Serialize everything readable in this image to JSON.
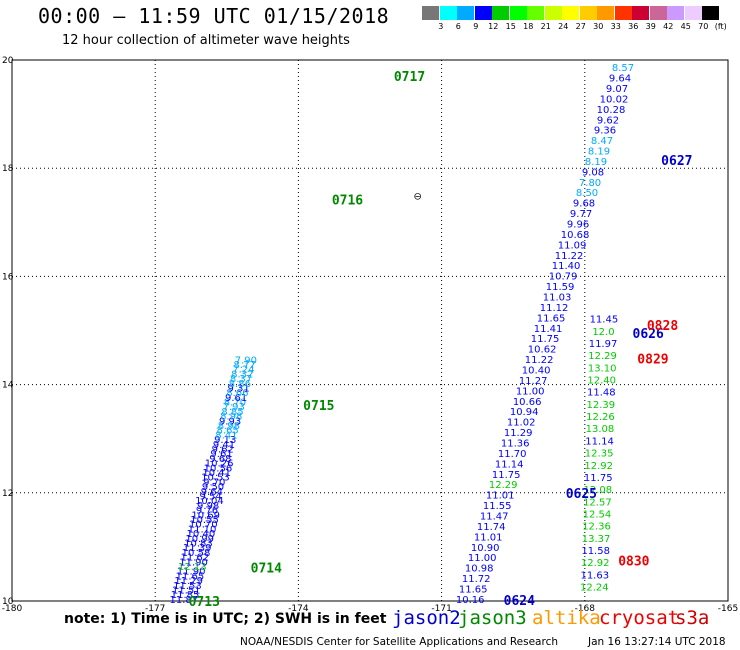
{
  "header": {
    "title": "00:00 – 11:59 UTC 01/15/2018",
    "subtitle": "12 hour collection of altimeter wave heights"
  },
  "colorbar": {
    "colors": [
      "#777777",
      "#00ffff",
      "#00aaff",
      "#0000ff",
      "#00cc00",
      "#00ff00",
      "#66ff00",
      "#ccff00",
      "#ffff00",
      "#ffcc00",
      "#ff9900",
      "#ff3300",
      "#cc0033",
      "#cc6699",
      "#cc99ff",
      "#eeccff",
      "#000000"
    ],
    "ticks": [
      "3",
      "6",
      "9",
      "12",
      "15",
      "18",
      "21",
      "24",
      "27",
      "30",
      "33",
      "36",
      "39",
      "42",
      "45",
      "70",
      "(ft)"
    ]
  },
  "chart_data": {
    "type": "scatter",
    "title": "00:00 – 11:59 UTC 01/15/2018",
    "subtitle": "12 hour collection of altimeter wave heights",
    "xlim": [
      -180,
      -165
    ],
    "ylim": [
      10,
      20
    ],
    "x_ticks": [
      "-180",
      "-177",
      "-174",
      "-171",
      "-168",
      "-165"
    ],
    "y_ticks": [
      "10",
      "12",
      "14",
      "16",
      "18",
      "20"
    ],
    "grid": true,
    "units": "SWH (ft)",
    "colors": {
      "jason2": "#0000cc",
      "jason3": "#008800",
      "altika": "#ff9900",
      "cryosat": "#ee0000",
      "s3a": "#cc0000"
    },
    "series": [
      {
        "name": "jason2",
        "passes": [
          {
            "lon_start": -176.4,
            "lat_start": 10.02,
            "lon_end": -175.1,
            "lat_end": 14.45,
            "values": [
              "11.87",
              "11.85",
              "11.51",
              "11.53",
              "11.29",
              "11.65",
              "11.90",
              "12.13",
              "11.90",
              "11.62",
              "10.58",
              "11.39",
              "10.83",
              "10.99",
              "10.40",
              "11.10",
              "10.70",
              "10.55",
              "10.69",
              "9.76",
              "9.98",
              "10.04",
              "9.54",
              "9.64",
              "9.50",
              "9.70",
              "10.53",
              "10.41",
              "10.56",
              "10.26",
              "9.68",
              "9.61",
              "9.62",
              "9.41",
              "9.13",
              "8.41",
              "8.65",
              "8.98",
              "9.93",
              "8.98",
              "8.85",
              "7.93",
              "8.70",
              "9.61",
              "8.66",
              "9.31",
              "8.86",
              "8.37",
              "8.32",
              "7.24",
              "8.77",
              "7.90"
            ]
          },
          {
            "lon_start": -170.4,
            "lat_start": 10.02,
            "lon_end": -167.2,
            "lat_end": 19.85,
            "values": [
              "10.16",
              "11.65",
              "11.72",
              "10.98",
              "11.00",
              "10.90",
              "11.01",
              "11.74",
              "11.47",
              "11.55",
              "11.01",
              "12.29",
              "11.75",
              "11.14",
              "11.70",
              "11.36",
              "11.29",
              "11.02",
              "10.94",
              "10.66",
              "11.00",
              "11.27",
              "10.40",
              "11.22",
              "10.62",
              "11.75",
              "11.41",
              "11.65",
              "11.12",
              "11.03",
              "11.59",
              "10.79",
              "11.40",
              "11.22",
              "11.09",
              "10.68",
              "9.96",
              "9.77",
              "9.68",
              "8.50",
              "7.80",
              "9.08",
              "8.19",
              "8.19",
              "8.47",
              "9.36",
              "9.62",
              "10.28",
              "10.02",
              "9.07",
              "9.64",
              "8.57"
            ]
          },
          {
            "lon_start": -167.8,
            "lat_start": 10.25,
            "lon_end": -167.6,
            "lat_end": 15.2,
            "values": [
              "12.24",
              "11.63",
              "12.92",
              "11.58",
              "13.37",
              "12.36",
              "12.54",
              "12.57",
              "12.08",
              "11.75",
              "12.92",
              "12.35",
              "11.14",
              "13.08",
              "12.26",
              "12.39",
              "11.48",
              "12.40",
              "13.10",
              "12.29",
              "11.97",
              "12.0",
              "11.45"
            ]
          }
        ],
        "pass_times": [
          "0624",
          "0625",
          "0626",
          "0627"
        ]
      },
      {
        "name": "jason3",
        "pass_times": [
          "0713",
          "0714",
          "0715",
          "0716",
          "0717"
        ]
      },
      {
        "name": "altika",
        "pass_times": []
      },
      {
        "name": "cryosat",
        "pass_times": [
          "0828",
          "0829",
          "0830"
        ]
      },
      {
        "name": "s3a",
        "pass_times": []
      }
    ],
    "annotations": [
      {
        "text": "0713",
        "lon": -176.3,
        "lat": 10.0,
        "color": "jason3"
      },
      {
        "text": "0714",
        "lon": -175.0,
        "lat": 10.62,
        "color": "jason3"
      },
      {
        "text": "0715",
        "lon": -173.9,
        "lat": 13.62,
        "color": "jason3"
      },
      {
        "text": "0716",
        "lon": -173.3,
        "lat": 17.42,
        "color": "jason3"
      },
      {
        "text": "0717",
        "lon": -172.0,
        "lat": 19.7,
        "color": "jason3"
      },
      {
        "text": "0624",
        "lon": -169.7,
        "lat": 10.02,
        "color": "jason2"
      },
      {
        "text": "0625",
        "lon": -168.4,
        "lat": 12.0,
        "color": "jason2"
      },
      {
        "text": "0626",
        "lon": -167.0,
        "lat": 14.95,
        "color": "jason2"
      },
      {
        "text": "0627",
        "lon": -166.4,
        "lat": 18.15,
        "color": "jason2"
      },
      {
        "text": "0828",
        "lon": -166.7,
        "lat": 15.1,
        "color": "cryosat"
      },
      {
        "text": "0829",
        "lon": -166.9,
        "lat": 14.48,
        "color": "cryosat"
      },
      {
        "text": "0830",
        "lon": -167.3,
        "lat": 10.75,
        "color": "cryosat"
      }
    ]
  },
  "footer": {
    "note": "note:  1) Time is in UTC;  2) SWH is in feet",
    "legend": [
      {
        "key": "jason2",
        "label": "jason2",
        "color": "#0000cc"
      },
      {
        "key": "jason3",
        "label": "jason3",
        "color": "#008800"
      },
      {
        "key": "altika",
        "label": "altika",
        "color": "#ff9900"
      },
      {
        "key": "cryosat",
        "label": "cryosat",
        "color": "#ee0000"
      },
      {
        "key": "s3a",
        "label": "s3a",
        "color": "#cc0000"
      }
    ],
    "credit": "NOAA/NESDIS Center for Satellite Applications and Research",
    "timestamp": "Jan 16 13:27:14 UTC 2018"
  },
  "map": {
    "island_marker": "⊖"
  }
}
